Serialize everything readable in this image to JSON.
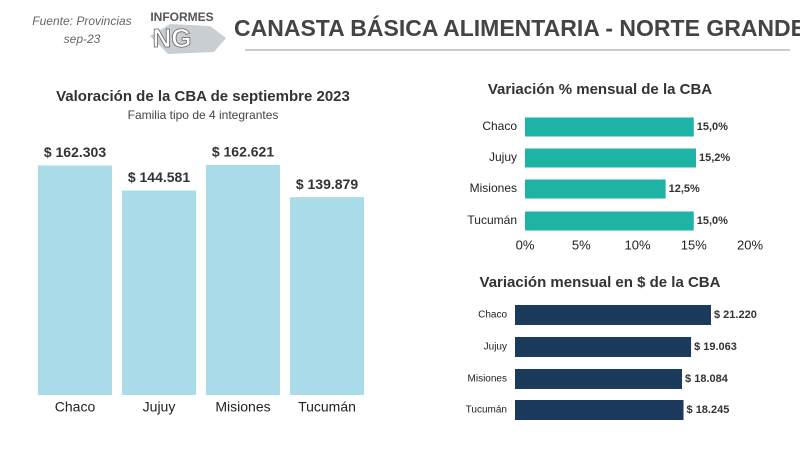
{
  "header": {
    "source": "Fuente: Provincias",
    "date": "sep-23",
    "logo_top": "INFORMES",
    "logo_main": "NG",
    "title": "CANASTA BÁSICA ALIMENTARIA - NORTE GRANDE"
  },
  "chart_data": [
    {
      "type": "bar",
      "title": "Valoración de la CBA de septiembre 2023",
      "subtitle": "Familia tipo de 4 integrantes",
      "categories": [
        "Chaco",
        "Jujuy",
        "Misiones",
        "Tucumán"
      ],
      "values": [
        162303,
        144581,
        162621,
        139879
      ],
      "value_labels": [
        "$ 162.303",
        "$ 144.581",
        "$ 162.621",
        "$ 139.879"
      ],
      "color": "#a9dbe8"
    },
    {
      "type": "barh",
      "title": "Variación % mensual de la CBA",
      "categories": [
        "Chaco",
        "Jujuy",
        "Misiones",
        "Tucumán"
      ],
      "values": [
        15.0,
        15.2,
        12.5,
        15.0
      ],
      "value_labels": [
        "15,0%",
        "15,2%",
        "12,5%",
        "15,0%"
      ],
      "color": "#1fb3a6",
      "xlim": [
        0,
        20
      ],
      "xticks": [
        {
          "value": 0,
          "label": "0%"
        },
        {
          "value": 5,
          "label": "5%"
        },
        {
          "value": 10,
          "label": "10%"
        },
        {
          "value": 15,
          "label": "15%"
        },
        {
          "value": 20,
          "label": "20%"
        }
      ]
    },
    {
      "type": "barh",
      "title": "Variación mensual en $ de la CBA",
      "categories": [
        "Chaco",
        "Jujuy",
        "Misiones",
        "Tucumán"
      ],
      "values": [
        21220,
        19063,
        18084,
        18245
      ],
      "value_labels": [
        "$ 21.220",
        "$ 19.063",
        "$ 18.084",
        "$ 18.245"
      ],
      "color": "#1b3a5c"
    }
  ]
}
